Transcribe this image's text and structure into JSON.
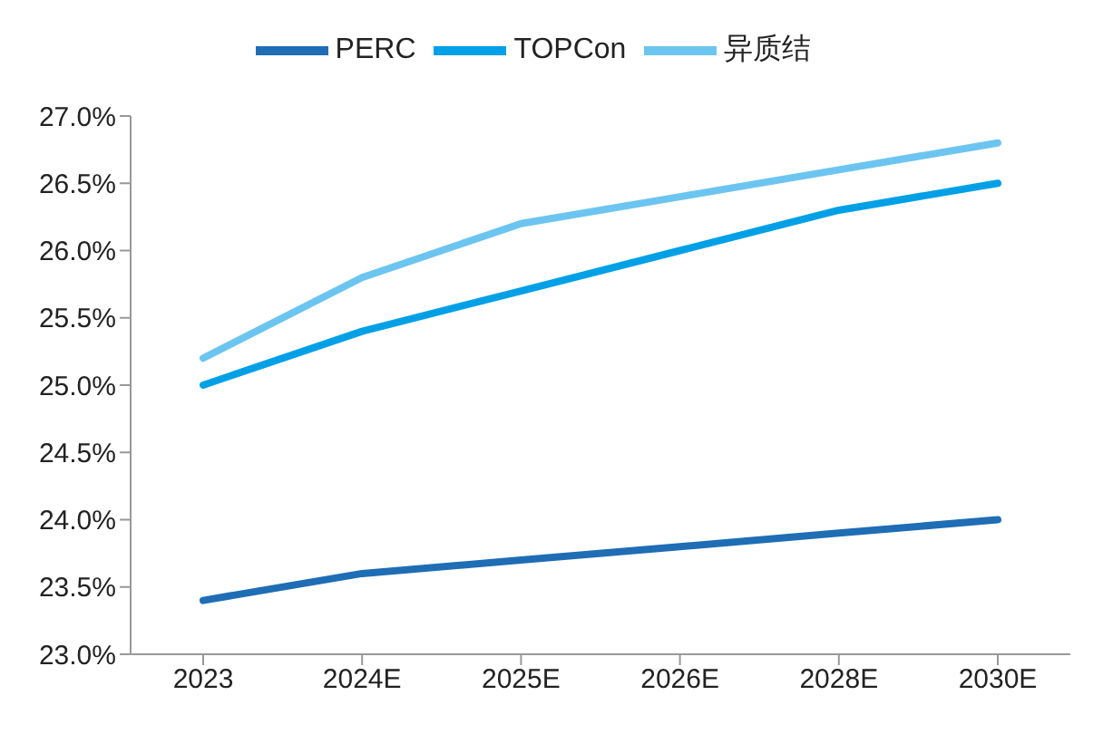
{
  "chart_data": {
    "type": "line",
    "categories": [
      "2023",
      "2024E",
      "2025E",
      "2026E",
      "2028E",
      "2030E"
    ],
    "series": [
      {
        "name": "PERC",
        "color": "#1f6db5",
        "values": [
          23.4,
          23.6,
          23.7,
          23.8,
          23.9,
          24.0
        ]
      },
      {
        "name": "TOPCon",
        "color": "#00a0e6",
        "values": [
          25.0,
          25.4,
          25.7,
          26.0,
          26.3,
          26.5
        ]
      },
      {
        "name": "异质结",
        "color": "#6cc5f0",
        "values": [
          25.2,
          25.8,
          26.2,
          26.4,
          26.6,
          26.8
        ]
      }
    ],
    "ylim": [
      23.0,
      27.0
    ],
    "yticks": [
      {
        "value": 23.0,
        "label": "23.0%"
      },
      {
        "value": 23.5,
        "label": "23.5%"
      },
      {
        "value": 24.0,
        "label": "24.0%"
      },
      {
        "value": 24.5,
        "label": "24.5%"
      },
      {
        "value": 25.0,
        "label": "25.0%"
      },
      {
        "value": 25.5,
        "label": "25.5%"
      },
      {
        "value": 26.0,
        "label": "26.0%"
      },
      {
        "value": 26.5,
        "label": "26.5%"
      },
      {
        "value": 27.0,
        "label": "27.0%"
      }
    ],
    "legend": "top",
    "marker": "none",
    "line_style": "solid",
    "grid": false
  }
}
